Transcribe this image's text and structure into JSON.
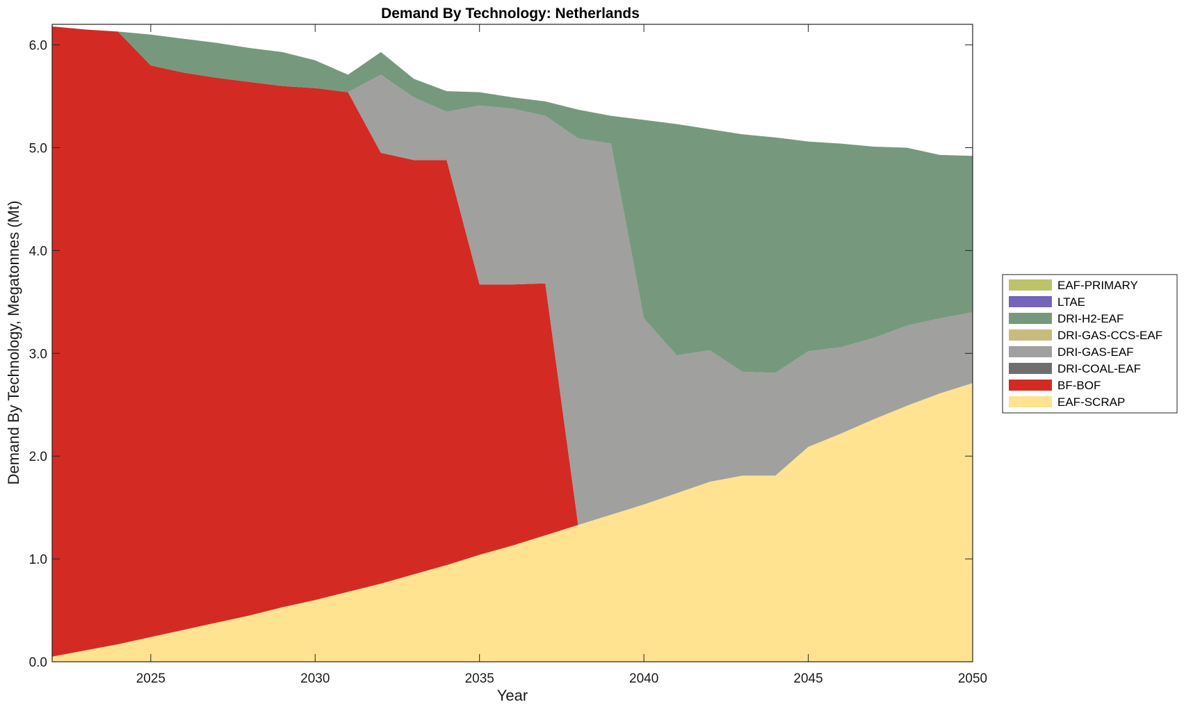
{
  "chart_data": {
    "type": "area",
    "title": "Demand By Technology: Netherlands",
    "xlabel": "Year",
    "ylabel": "Demand By Technology, Megatonnes (Mt)",
    "xlim": [
      2022,
      2050
    ],
    "ylim": [
      0,
      6.2
    ],
    "xticks": [
      2025,
      2030,
      2035,
      2040,
      2045,
      2050
    ],
    "yticks": [
      0,
      1,
      2,
      3,
      4,
      5,
      6
    ],
    "ytick_labels": [
      "0.0",
      "1.0",
      "2.0",
      "3.0",
      "4.0",
      "5.0",
      "6.0"
    ],
    "grid": false,
    "legend_placement": "right",
    "x": [
      2022,
      2023,
      2024,
      2025,
      2026,
      2027,
      2028,
      2029,
      2030,
      2031,
      2032,
      2033,
      2034,
      2035,
      2036,
      2037,
      2038,
      2039,
      2040,
      2041,
      2042,
      2043,
      2044,
      2045,
      2046,
      2047,
      2048,
      2049,
      2050
    ],
    "series": [
      {
        "name": "EAF-SCRAP",
        "color": "#FFE391",
        "values": [
          0.05,
          0.11,
          0.17,
          0.24,
          0.31,
          0.38,
          0.45,
          0.53,
          0.6,
          0.68,
          0.76,
          0.85,
          0.94,
          1.04,
          1.13,
          1.23,
          1.33,
          1.43,
          1.53,
          1.64,
          1.75,
          1.81,
          1.81,
          2.09,
          2.22,
          2.36,
          2.49,
          2.61,
          2.71
        ]
      },
      {
        "name": "BF-BOF",
        "color": "#D42A24",
        "values": [
          6.13,
          6.04,
          5.96,
          5.56,
          5.42,
          5.3,
          5.19,
          5.07,
          4.98,
          4.86,
          4.19,
          4.03,
          3.94,
          2.63,
          2.54,
          2.45,
          0,
          0,
          0,
          0,
          0,
          0,
          0,
          0,
          0,
          0,
          0,
          0,
          0
        ]
      },
      {
        "name": "DRI-COAL-EAF",
        "color": "#6E6E6E",
        "values": [
          0,
          0,
          0,
          0,
          0,
          0,
          0,
          0,
          0,
          0,
          0,
          0,
          0,
          0,
          0,
          0,
          0,
          0,
          0,
          0,
          0,
          0,
          0,
          0,
          0,
          0,
          0,
          0,
          0
        ]
      },
      {
        "name": "DRI-GAS-EAF",
        "color": "#A0A09E",
        "values": [
          0,
          0,
          0,
          0,
          0,
          0,
          0,
          0,
          0,
          0,
          0.76,
          0.61,
          0.47,
          1.74,
          1.71,
          1.63,
          3.76,
          3.61,
          1.81,
          1.34,
          1.28,
          1.01,
          1.0,
          0.93,
          0.84,
          0.79,
          0.78,
          0.73,
          0.69
        ]
      },
      {
        "name": "DRI-GAS-CCS-EAF",
        "color": "#C8BB7E",
        "values": [
          0,
          0,
          0,
          0,
          0,
          0,
          0,
          0,
          0,
          0,
          0,
          0,
          0,
          0,
          0,
          0,
          0,
          0,
          0,
          0,
          0,
          0,
          0,
          0,
          0,
          0,
          0,
          0,
          0
        ]
      },
      {
        "name": "DRI-H2-EAF",
        "color": "#76997D",
        "values": [
          0,
          0,
          0,
          0.3,
          0.33,
          0.34,
          0.33,
          0.33,
          0.27,
          0.17,
          0.22,
          0.18,
          0.2,
          0.13,
          0.11,
          0.14,
          0.28,
          0.27,
          1.93,
          2.25,
          2.15,
          2.31,
          2.29,
          2.04,
          1.98,
          1.86,
          1.73,
          1.59,
          1.52
        ]
      },
      {
        "name": "LTAE",
        "color": "#7464BC",
        "values": [
          0,
          0,
          0,
          0,
          0,
          0,
          0,
          0,
          0,
          0,
          0,
          0,
          0,
          0,
          0,
          0,
          0,
          0,
          0,
          0,
          0,
          0,
          0,
          0,
          0,
          0,
          0,
          0,
          0
        ]
      },
      {
        "name": "EAF-PRIMARY",
        "color": "#BCC36A",
        "values": [
          0,
          0,
          0,
          0,
          0,
          0,
          0,
          0,
          0,
          0,
          0,
          0,
          0,
          0,
          0,
          0,
          0,
          0,
          0,
          0,
          0,
          0,
          0,
          0,
          0,
          0,
          0,
          0,
          0
        ]
      }
    ]
  }
}
